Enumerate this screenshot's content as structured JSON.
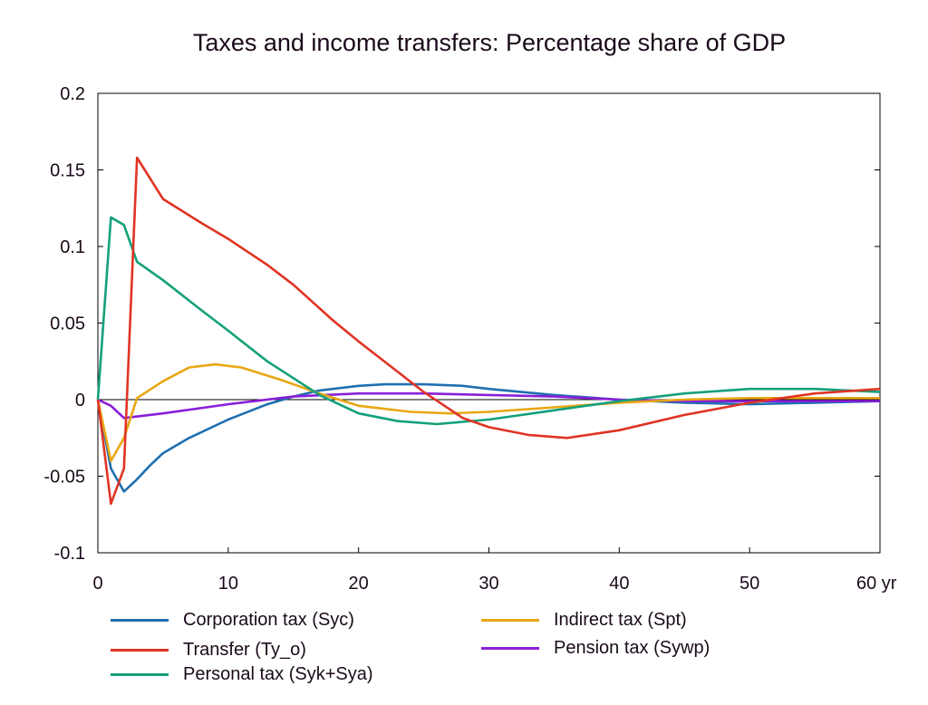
{
  "chart_data": {
    "type": "line",
    "title": "Taxes and income transfers: Percentage share of GDP",
    "xlabel": "",
    "ylabel": "",
    "xlim": [
      0,
      60
    ],
    "ylim": [
      -0.1,
      0.2
    ],
    "x_ticks": [
      "0",
      "10",
      "20",
      "30",
      "40",
      "50",
      "60 yr"
    ],
    "y_ticks": [
      "-0.1",
      "-0.05",
      "0",
      "0.05",
      "0.1",
      "0.15",
      "0.2"
    ],
    "x_tick_values": [
      0,
      10,
      20,
      30,
      40,
      50,
      60
    ],
    "y_tick_values": [
      -0.1,
      -0.05,
      0,
      0.05,
      0.1,
      0.15,
      0.2
    ],
    "grid": false,
    "legend_position": "bottom",
    "series": [
      {
        "name": "Corporation tax (Syc)",
        "color": "#1f6fb0",
        "x": [
          0,
          1,
          2,
          3,
          4,
          5,
          7,
          10,
          13,
          15,
          17,
          20,
          22,
          25,
          28,
          30,
          35,
          40,
          45,
          50,
          55,
          60
        ],
        "y": [
          0,
          -0.045,
          -0.06,
          -0.052,
          -0.043,
          -0.035,
          -0.025,
          -0.013,
          -0.003,
          0.002,
          0.006,
          0.009,
          0.01,
          0.01,
          0.009,
          0.007,
          0.003,
          0.0,
          -0.002,
          -0.003,
          -0.002,
          -0.001
        ]
      },
      {
        "name": "Transfer (Ty_o)",
        "color": "#e03424",
        "x": [
          0,
          1,
          2,
          3,
          5,
          8,
          10,
          13,
          15,
          18,
          20,
          25,
          28,
          30,
          33,
          36,
          40,
          45,
          50,
          55,
          60
        ],
        "y": [
          0,
          -0.068,
          -0.045,
          0.158,
          0.131,
          0.115,
          0.105,
          0.088,
          0.075,
          0.052,
          0.038,
          0.005,
          -0.012,
          -0.018,
          -0.023,
          -0.025,
          -0.02,
          -0.01,
          -0.002,
          0.004,
          0.007
        ]
      },
      {
        "name": "Personal tax (Syk+Sya)",
        "color": "#14a07a",
        "x": [
          0,
          1,
          2,
          3,
          5,
          8,
          10,
          13,
          15,
          17,
          20,
          23,
          26,
          30,
          35,
          40,
          45,
          50,
          55,
          60
        ],
        "y": [
          0,
          0.119,
          0.114,
          0.09,
          0.078,
          0.058,
          0.045,
          0.025,
          0.014,
          0.003,
          -0.009,
          -0.014,
          -0.016,
          -0.013,
          -0.007,
          -0.001,
          0.004,
          0.007,
          0.007,
          0.005
        ]
      },
      {
        "name": "Indirect tax (Spt)",
        "color": "#e8a712",
        "x": [
          0,
          1,
          2,
          3,
          5,
          7,
          9,
          11,
          14,
          17,
          20,
          24,
          27,
          30,
          35,
          40,
          45,
          50,
          55,
          60
        ],
        "y": [
          0,
          -0.04,
          -0.025,
          0.001,
          0.012,
          0.021,
          0.023,
          0.021,
          0.013,
          0.004,
          -0.004,
          -0.008,
          -0.009,
          -0.008,
          -0.005,
          -0.002,
          0.0,
          0.001,
          0.001,
          0.001
        ]
      },
      {
        "name": "Pension tax (Sywp)",
        "color": "#8a1fd8",
        "x": [
          0,
          1,
          2,
          5,
          10,
          15,
          20,
          25,
          30,
          35,
          40,
          45,
          50,
          55,
          60
        ],
        "y": [
          0,
          -0.004,
          -0.012,
          -0.009,
          -0.003,
          0.002,
          0.004,
          0.004,
          0.003,
          0.002,
          0.0,
          -0.001,
          -0.001,
          -0.001,
          -0.001
        ]
      }
    ]
  }
}
